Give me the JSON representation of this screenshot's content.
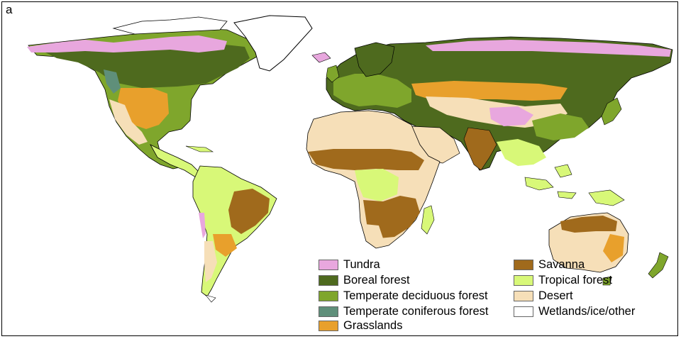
{
  "panel_letter": "a",
  "legend": {
    "col1": [
      {
        "label": "Tundra",
        "color": "#E8A7DE"
      },
      {
        "label": "Boreal forest",
        "color": "#4E6A1E"
      },
      {
        "label": "Temperate deciduous forest",
        "color": "#7FA62C"
      },
      {
        "label": "Temperate coniferous forest",
        "color": "#5F8F7A"
      },
      {
        "label": "Grasslands",
        "color": "#E8A02C"
      }
    ],
    "col2": [
      {
        "label": "Savanna",
        "color": "#A06A1C"
      },
      {
        "label": "Tropical forest",
        "color": "#D8F878"
      },
      {
        "label": "Desert",
        "color": "#F6DFB8"
      },
      {
        "label": "Wetlands/ice/other",
        "color": "#FFFFFF"
      }
    ]
  }
}
